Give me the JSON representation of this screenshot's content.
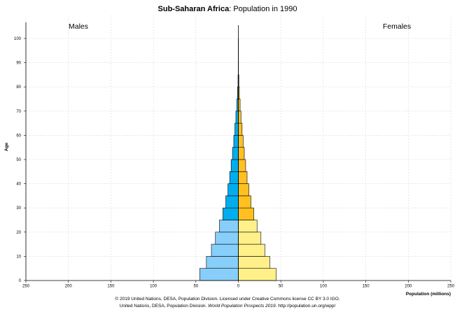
{
  "chart_data": {
    "type": "bar",
    "title_bold": "Sub-Saharan Africa",
    "title_rest": ": Population in 1990",
    "left_label": "Males",
    "right_label": "Females",
    "ylabel": "Age",
    "xlabel": "Population (millions)",
    "x_ticks": [
      "250",
      "200",
      "150",
      "100",
      "50",
      "0",
      "50",
      "100",
      "150",
      "200",
      "250"
    ],
    "y_ticks": [
      "0",
      "10",
      "20",
      "30",
      "40",
      "50",
      "60",
      "70",
      "80",
      "90",
      "100"
    ],
    "xlim": [
      -250,
      250
    ],
    "ylim": [
      0,
      100
    ],
    "grid": true,
    "age_bin_width": 5,
    "colors": {
      "male_young": "#87cefa",
      "male_adult": "#00aeef",
      "male_old": "#1a4f8a",
      "female_young": "#fff08a",
      "female_adult": "#ffc020",
      "female_old": "#7a5200"
    },
    "age_groups": [
      0,
      5,
      10,
      15,
      20,
      25,
      30,
      35,
      40,
      45,
      50,
      55,
      60,
      65,
      70,
      75,
      80,
      85,
      90,
      95,
      100
    ],
    "series": [
      {
        "name": "Males",
        "values": [
          45.4,
          37.6,
          31.7,
          27.0,
          22.3,
          18.2,
          14.8,
          12.3,
          10.2,
          8.5,
          6.9,
          5.4,
          4.1,
          2.9,
          1.8,
          1.0,
          0.4,
          0.1,
          0.03,
          0.01,
          0.0
        ]
      },
      {
        "name": "Females",
        "values": [
          44.4,
          37.0,
          31.2,
          26.6,
          22.0,
          18.2,
          14.8,
          12.4,
          10.3,
          8.6,
          7.0,
          5.6,
          4.4,
          3.1,
          2.1,
          1.2,
          0.6,
          0.2,
          0.05,
          0.01,
          0.0
        ]
      }
    ]
  },
  "footer": {
    "line1": "© 2019 United Nations, DESA, Population Division. Licensed under Creative Commons license CC BY 3.0 IGO.",
    "line2_pre": "United Nations, DESA, Population Division. ",
    "line2_italic": "World Population Prospects 2019",
    "line2_post": ". http://population.un.org/wpp/"
  }
}
